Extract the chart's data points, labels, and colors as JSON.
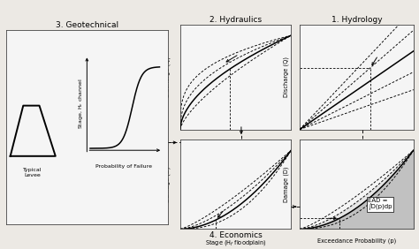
{
  "bg_color": "#ece9e4",
  "panel_bg": "#f5f5f5",
  "lc": "#111111",
  "gray_fill": "#b0b0b0",
  "light_gray": "#d8d8d8",
  "fs_title": 6.5,
  "fs_label": 4.8,
  "fs_ann": 4.5,
  "fs_text": 5.0,
  "ead_text": "EAD =\n∫D(p)dp",
  "panels": {
    "geo": [
      0.015,
      0.1,
      0.385,
      0.78
    ],
    "hydraulics": [
      0.43,
      0.48,
      0.265,
      0.42
    ],
    "hydrology": [
      0.715,
      0.48,
      0.272,
      0.42
    ],
    "eco_stage": [
      0.43,
      0.08,
      0.265,
      0.36
    ],
    "eco_prob": [
      0.715,
      0.08,
      0.272,
      0.36
    ]
  }
}
